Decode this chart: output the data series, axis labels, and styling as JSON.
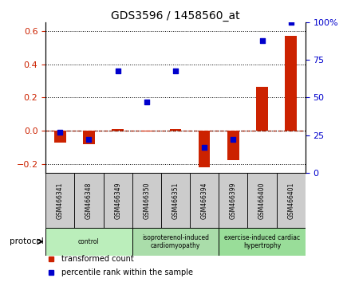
{
  "title": "GDS3596 / 1458560_at",
  "samples": [
    "GSM466341",
    "GSM466348",
    "GSM466349",
    "GSM466350",
    "GSM466351",
    "GSM466394",
    "GSM466399",
    "GSM466400",
    "GSM466401"
  ],
  "transformed_count": [
    -0.07,
    -0.08,
    0.01,
    -0.005,
    0.01,
    -0.22,
    -0.175,
    0.265,
    0.57
  ],
  "percentile_right_axis": [
    27,
    22,
    68,
    47,
    68,
    17,
    22,
    88,
    100
  ],
  "ylim_left": [
    -0.25,
    0.65
  ],
  "ylim_right": [
    0,
    100
  ],
  "yticks_left": [
    -0.2,
    0.0,
    0.2,
    0.4,
    0.6
  ],
  "yticks_right": [
    0,
    25,
    50,
    75,
    100
  ],
  "ytick_labels_right": [
    "0",
    "25",
    "50",
    "75",
    "100%"
  ],
  "bar_color": "#cc2200",
  "dot_color": "#0000cc",
  "dashed_line_color": "#cc2200",
  "grid_color": "#000000",
  "groups": [
    {
      "label": "control",
      "start": 0,
      "end": 3,
      "color": "#bbeebb"
    },
    {
      "label": "isoproterenol-induced\ncardiomyopathy",
      "start": 3,
      "end": 6,
      "color": "#aaddaa"
    },
    {
      "label": "exercise-induced cardiac\nhypertrophy",
      "start": 6,
      "end": 9,
      "color": "#99dd99"
    }
  ],
  "protocol_label": "protocol",
  "legend_items": [
    {
      "color": "#cc2200",
      "label": "transformed count"
    },
    {
      "color": "#0000cc",
      "label": "percentile rank within the sample"
    }
  ],
  "background_color": "#ffffff",
  "plot_bg_color": "#ffffff",
  "tick_label_color_left": "#cc2200",
  "tick_label_color_right": "#0000cc",
  "cell_color": "#cccccc"
}
